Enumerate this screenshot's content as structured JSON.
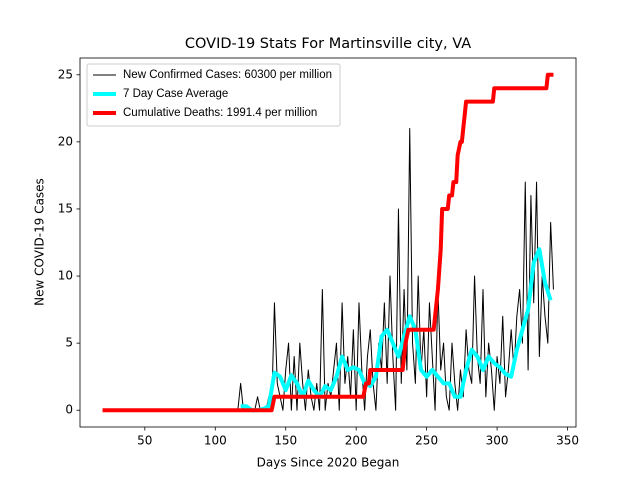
{
  "chart_data": {
    "type": "line",
    "title": "COVID-19 Stats For Martinsville city, VA",
    "x_label": "Days Since 2020 Began",
    "y_label": "New COVID-19 Cases",
    "xlim": [
      4,
      356
    ],
    "xticks": [
      50,
      100,
      150,
      200,
      250,
      300,
      350
    ],
    "ylim": [
      -1.25,
      26.25
    ],
    "yticks": [
      0,
      5,
      10,
      15,
      20,
      25
    ],
    "legend": "upper left",
    "series": [
      {
        "name": "New Confirmed Cases: 60300 per million",
        "color": "#000000",
        "width": 1,
        "x": [
          20,
          116,
          118,
          120,
          122,
          124,
          126,
          128,
          130,
          132,
          134,
          136,
          138,
          140,
          142,
          144,
          146,
          148,
          150,
          152,
          154,
          156,
          158,
          160,
          162,
          164,
          166,
          168,
          170,
          172,
          174,
          176,
          178,
          180,
          182,
          184,
          186,
          188,
          190,
          192,
          194,
          196,
          198,
          200,
          202,
          204,
          206,
          208,
          210,
          212,
          214,
          216,
          218,
          220,
          222,
          224,
          226,
          228,
          230,
          232,
          234,
          236,
          238,
          240,
          242,
          244,
          246,
          248,
          250,
          252,
          254,
          256,
          258,
          260,
          262,
          264,
          266,
          268,
          270,
          272,
          274,
          276,
          278,
          280,
          282,
          284,
          286,
          288,
          290,
          292,
          294,
          296,
          298,
          300,
          302,
          304,
          306,
          308,
          310,
          312,
          314,
          316,
          318,
          320,
          322,
          324,
          326,
          328,
          330,
          332,
          334,
          336,
          338,
          340
        ],
        "values": [
          0,
          0,
          2,
          0,
          0,
          0,
          0,
          0,
          1,
          0,
          0,
          0,
          1,
          0,
          8,
          2,
          1,
          0,
          3,
          5,
          0,
          4,
          0,
          5,
          2,
          0,
          3,
          1,
          0,
          2,
          0,
          9,
          0,
          2,
          1,
          3,
          5,
          0,
          8,
          2,
          4,
          1,
          6,
          0,
          8,
          3,
          0,
          4,
          6,
          2,
          0,
          5,
          3,
          8,
          2,
          10,
          4,
          0,
          15,
          2,
          9,
          3,
          21,
          5,
          2,
          10,
          3,
          6,
          1,
          8,
          4,
          0,
          9,
          3,
          5,
          1,
          0,
          5,
          2,
          0,
          3,
          1,
          6,
          3,
          2,
          10,
          4,
          2,
          9,
          1,
          5,
          3,
          0,
          4,
          2,
          7,
          1,
          3,
          6,
          3,
          7,
          9,
          5,
          17,
          3,
          16,
          8,
          17,
          4,
          10,
          7,
          5,
          14,
          9
        ]
      },
      {
        "name": "7 Day Case Average",
        "color": "#00ffff",
        "width": 4,
        "x": [
          118,
          122,
          126,
          130,
          134,
          138,
          142,
          146,
          150,
          154,
          158,
          162,
          166,
          170,
          174,
          178,
          182,
          186,
          190,
          194,
          198,
          202,
          206,
          210,
          214,
          218,
          222,
          226,
          230,
          234,
          238,
          242,
          246,
          250,
          254,
          258,
          262,
          266,
          270,
          274,
          278,
          282,
          286,
          290,
          294,
          298,
          302,
          306,
          310,
          314,
          318,
          322,
          326,
          330,
          334,
          338
        ],
        "values": [
          0.3,
          0.3,
          0,
          0,
          0.1,
          0.3,
          2.8,
          2.5,
          1.5,
          2.6,
          2,
          1,
          2.2,
          1.5,
          1,
          1.8,
          1.5,
          2.5,
          4,
          3,
          3.2,
          3,
          2,
          1.8,
          2.5,
          5.5,
          6,
          5,
          4,
          5.5,
          7,
          6,
          3,
          2.5,
          3,
          2.5,
          2,
          2,
          1,
          1,
          3,
          4.5,
          4,
          3,
          4,
          3.5,
          3.2,
          2.7,
          2.5,
          4.5,
          6,
          7.5,
          11,
          12,
          9.5,
          8.2
        ]
      },
      {
        "name": "Cumulative Deaths: 1991.4 per million",
        "color": "#ff0000",
        "width": 4,
        "x": [
          20,
          140,
          142,
          205,
          207,
          209,
          210,
          233,
          235,
          237,
          255,
          256,
          258,
          260,
          261,
          265,
          266,
          268,
          269,
          271,
          272,
          274,
          275,
          277,
          278,
          297,
          298,
          335,
          336,
          340
        ],
        "values": [
          0,
          0,
          1,
          1,
          2,
          2,
          3,
          3,
          5,
          6,
          6,
          7,
          9,
          12,
          15,
          15,
          16,
          16,
          17,
          17,
          19,
          20,
          20,
          22,
          23,
          23,
          24,
          24,
          25,
          25
        ]
      }
    ]
  }
}
